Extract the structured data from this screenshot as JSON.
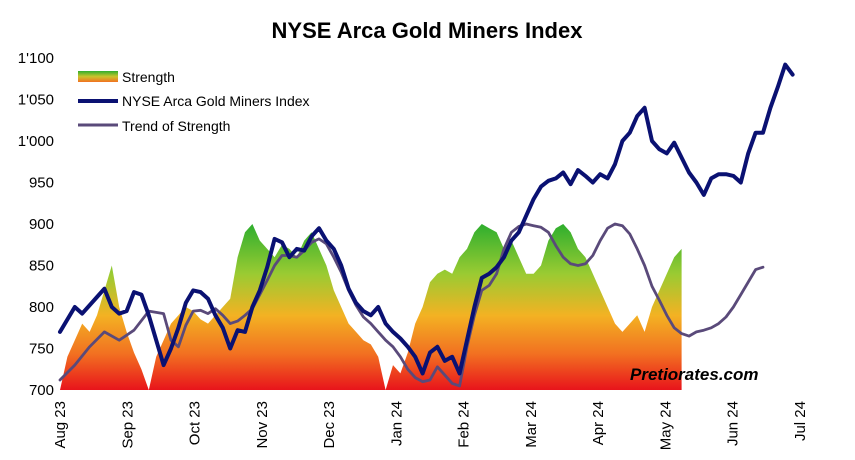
{
  "chart_data": {
    "type": "line",
    "title": "NYSE Arca Gold Miners Index",
    "xlabel": "",
    "ylabel": "",
    "ylim": [
      700,
      1100
    ],
    "y_ticks": [
      "700",
      "750",
      "800",
      "850",
      "900",
      "950",
      "1'000",
      "1'050",
      "1'100"
    ],
    "x_tick_labels": [
      "Aug 23",
      "Sep 23",
      "Oct 23",
      "Nov 23",
      "Dec 23",
      "Jan 24",
      "Feb 24",
      "Mar 24",
      "Apr 24",
      "May 24",
      "Jun 24",
      "Jul 24"
    ],
    "legend": [
      {
        "name": "Strength",
        "kind": "area",
        "color": "#4caf2a"
      },
      {
        "name": "NYSE Arca Gold Miners Index",
        "kind": "line",
        "color": "#0a1172"
      },
      {
        "name": "Trend of Strength",
        "kind": "line",
        "color": "#5a4a7a"
      }
    ],
    "legend_position": "top-left",
    "grid": false,
    "watermark": "Pretiorates.com",
    "series": [
      {
        "name": "NYSE Arca Gold Miners Index",
        "color": "#0a1172",
        "points": [
          [
            0,
            770
          ],
          [
            2,
            800
          ],
          [
            3,
            792
          ],
          [
            5,
            812
          ],
          [
            6,
            822
          ],
          [
            7,
            800
          ],
          [
            8,
            792
          ],
          [
            9,
            795
          ],
          [
            10,
            818
          ],
          [
            11,
            815
          ],
          [
            12,
            790
          ],
          [
            13,
            760
          ],
          [
            14,
            730
          ],
          [
            15,
            750
          ],
          [
            16,
            775
          ],
          [
            17,
            805
          ],
          [
            18,
            820
          ],
          [
            19,
            818
          ],
          [
            20,
            810
          ],
          [
            21,
            790
          ],
          [
            22,
            775
          ],
          [
            23,
            750
          ],
          [
            24,
            772
          ],
          [
            25,
            770
          ],
          [
            26,
            800
          ],
          [
            27,
            820
          ],
          [
            28,
            848
          ],
          [
            29,
            882
          ],
          [
            30,
            878
          ],
          [
            31,
            860
          ],
          [
            32,
            870
          ],
          [
            33,
            868
          ],
          [
            34,
            885
          ],
          [
            35,
            895
          ],
          [
            36,
            880
          ],
          [
            37,
            870
          ],
          [
            38,
            850
          ],
          [
            39,
            822
          ],
          [
            40,
            805
          ],
          [
            41,
            795
          ],
          [
            42,
            790
          ],
          [
            43,
            800
          ],
          [
            44,
            780
          ],
          [
            45,
            770
          ],
          [
            46,
            762
          ],
          [
            47,
            752
          ],
          [
            48,
            740
          ],
          [
            49,
            720
          ],
          [
            50,
            745
          ],
          [
            51,
            752
          ],
          [
            52,
            735
          ],
          [
            53,
            740
          ],
          [
            54,
            720
          ],
          [
            55,
            760
          ],
          [
            56,
            800
          ],
          [
            57,
            835
          ],
          [
            58,
            840
          ],
          [
            59,
            848
          ],
          [
            60,
            860
          ],
          [
            61,
            880
          ],
          [
            62,
            890
          ],
          [
            63,
            910
          ],
          [
            64,
            930
          ],
          [
            65,
            945
          ],
          [
            66,
            952
          ],
          [
            67,
            955
          ],
          [
            68,
            962
          ],
          [
            69,
            948
          ],
          [
            70,
            965
          ],
          [
            71,
            958
          ],
          [
            72,
            950
          ],
          [
            73,
            960
          ],
          [
            74,
            955
          ],
          [
            75,
            972
          ],
          [
            76,
            1000
          ],
          [
            77,
            1010
          ],
          [
            78,
            1030
          ],
          [
            79,
            1040
          ],
          [
            80,
            1000
          ],
          [
            81,
            990
          ],
          [
            82,
            985
          ],
          [
            83,
            998
          ],
          [
            84,
            980
          ],
          [
            85,
            962
          ],
          [
            86,
            950
          ],
          [
            87,
            935
          ],
          [
            88,
            955
          ],
          [
            89,
            960
          ],
          [
            90,
            960
          ],
          [
            91,
            958
          ],
          [
            92,
            950
          ],
          [
            93,
            985
          ],
          [
            94,
            1010
          ],
          [
            95,
            1010
          ],
          [
            96,
            1040
          ],
          [
            97,
            1065
          ],
          [
            98,
            1092
          ],
          [
            99,
            1080
          ]
        ]
      },
      {
        "name": "Trend of Strength",
        "color": "#5a4a7a",
        "points": [
          [
            0,
            712
          ],
          [
            2,
            730
          ],
          [
            4,
            752
          ],
          [
            6,
            770
          ],
          [
            8,
            760
          ],
          [
            10,
            772
          ],
          [
            12,
            795
          ],
          [
            14,
            792
          ],
          [
            15,
            760
          ],
          [
            16,
            752
          ],
          [
            17,
            778
          ],
          [
            18,
            795
          ],
          [
            19,
            796
          ],
          [
            20,
            792
          ],
          [
            21,
            798
          ],
          [
            22,
            790
          ],
          [
            23,
            780
          ],
          [
            24,
            783
          ],
          [
            25,
            790
          ],
          [
            26,
            798
          ],
          [
            27,
            815
          ],
          [
            28,
            832
          ],
          [
            29,
            850
          ],
          [
            30,
            862
          ],
          [
            31,
            862
          ],
          [
            32,
            860
          ],
          [
            33,
            868
          ],
          [
            34,
            878
          ],
          [
            35,
            882
          ],
          [
            36,
            876
          ],
          [
            37,
            860
          ],
          [
            38,
            842
          ],
          [
            39,
            820
          ],
          [
            40,
            802
          ],
          [
            41,
            788
          ],
          [
            42,
            780
          ],
          [
            43,
            770
          ],
          [
            44,
            760
          ],
          [
            45,
            752
          ],
          [
            46,
            740
          ],
          [
            47,
            725
          ],
          [
            48,
            715
          ],
          [
            49,
            710
          ],
          [
            50,
            712
          ],
          [
            51,
            728
          ],
          [
            52,
            718
          ],
          [
            53,
            708
          ],
          [
            54,
            705
          ],
          [
            55,
            752
          ],
          [
            56,
            790
          ],
          [
            57,
            820
          ],
          [
            58,
            826
          ],
          [
            59,
            840
          ],
          [
            60,
            870
          ],
          [
            61,
            890
          ],
          [
            62,
            897
          ],
          [
            63,
            900
          ],
          [
            64,
            898
          ],
          [
            65,
            896
          ],
          [
            66,
            890
          ],
          [
            67,
            874
          ],
          [
            68,
            860
          ],
          [
            69,
            852
          ],
          [
            70,
            850
          ],
          [
            71,
            852
          ],
          [
            72,
            862
          ],
          [
            73,
            880
          ],
          [
            74,
            895
          ],
          [
            75,
            900
          ],
          [
            76,
            898
          ],
          [
            77,
            888
          ],
          [
            78,
            870
          ],
          [
            79,
            850
          ],
          [
            80,
            825
          ],
          [
            81,
            808
          ],
          [
            82,
            790
          ],
          [
            83,
            775
          ],
          [
            84,
            768
          ],
          [
            85,
            765
          ],
          [
            86,
            770
          ],
          [
            87,
            772
          ],
          [
            88,
            775
          ],
          [
            89,
            780
          ],
          [
            90,
            788
          ],
          [
            91,
            800
          ],
          [
            92,
            815
          ],
          [
            93,
            830
          ],
          [
            94,
            845
          ],
          [
            95,
            848
          ]
        ]
      },
      {
        "name": "Strength",
        "type": "area",
        "points": [
          [
            0,
            700
          ],
          [
            1,
            740
          ],
          [
            2,
            760
          ],
          [
            3,
            780
          ],
          [
            4,
            770
          ],
          [
            5,
            790
          ],
          [
            6,
            820
          ],
          [
            7,
            850
          ],
          [
            8,
            800
          ],
          [
            9,
            770
          ],
          [
            10,
            745
          ],
          [
            11,
            725
          ],
          [
            12,
            700
          ],
          [
            13,
            740
          ],
          [
            14,
            760
          ],
          [
            15,
            780
          ],
          [
            16,
            790
          ],
          [
            17,
            800
          ],
          [
            18,
            795
          ],
          [
            19,
            785
          ],
          [
            20,
            780
          ],
          [
            21,
            790
          ],
          [
            22,
            800
          ],
          [
            23,
            810
          ],
          [
            24,
            860
          ],
          [
            25,
            890
          ],
          [
            26,
            900
          ],
          [
            27,
            880
          ],
          [
            28,
            870
          ],
          [
            29,
            860
          ],
          [
            30,
            875
          ],
          [
            31,
            870
          ],
          [
            32,
            860
          ],
          [
            33,
            880
          ],
          [
            34,
            890
          ],
          [
            35,
            870
          ],
          [
            36,
            850
          ],
          [
            37,
            820
          ],
          [
            38,
            800
          ],
          [
            39,
            780
          ],
          [
            40,
            770
          ],
          [
            41,
            760
          ],
          [
            42,
            755
          ],
          [
            43,
            740
          ],
          [
            44,
            700
          ],
          [
            45,
            730
          ],
          [
            46,
            720
          ],
          [
            47,
            745
          ],
          [
            48,
            780
          ],
          [
            49,
            800
          ],
          [
            50,
            830
          ],
          [
            51,
            840
          ],
          [
            52,
            845
          ],
          [
            53,
            840
          ],
          [
            54,
            860
          ],
          [
            55,
            870
          ],
          [
            56,
            890
          ],
          [
            57,
            900
          ],
          [
            58,
            895
          ],
          [
            59,
            890
          ],
          [
            60,
            870
          ],
          [
            61,
            880
          ],
          [
            62,
            860
          ],
          [
            63,
            840
          ],
          [
            64,
            840
          ],
          [
            65,
            850
          ],
          [
            66,
            880
          ],
          [
            67,
            895
          ],
          [
            68,
            900
          ],
          [
            69,
            890
          ],
          [
            70,
            870
          ],
          [
            71,
            860
          ],
          [
            72,
            840
          ],
          [
            73,
            820
          ],
          [
            74,
            800
          ],
          [
            75,
            780
          ],
          [
            76,
            770
          ],
          [
            77,
            780
          ],
          [
            78,
            790
          ],
          [
            79,
            770
          ],
          [
            80,
            800
          ],
          [
            81,
            820
          ],
          [
            82,
            840
          ],
          [
            83,
            860
          ],
          [
            84,
            870
          ]
        ]
      }
    ]
  }
}
